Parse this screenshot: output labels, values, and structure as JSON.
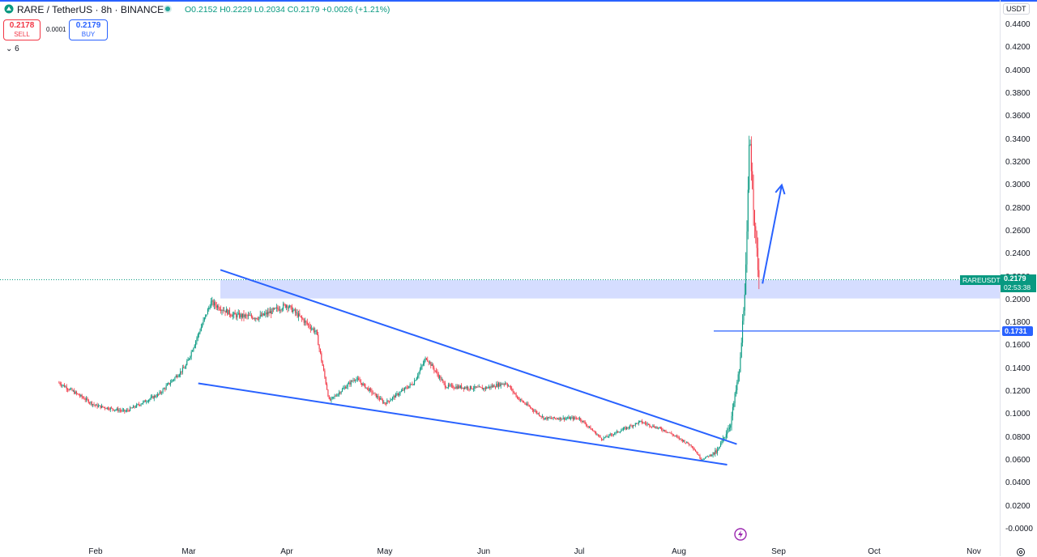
{
  "header": {
    "symbol_title": "RARE / TetherUS · 8h · BINANCE",
    "open": "O0.2152",
    "high": "H0.2229",
    "low": "L0.2034",
    "close": "C0.2179",
    "change": "+0.0026 (+1.21%)",
    "sell_price": "0.2178",
    "sell_label": "SELL",
    "spread": "0.0001",
    "buy_price": "0.2179",
    "buy_label": "BUY",
    "indicator_count": "6"
  },
  "axis": {
    "currency": "USDT"
  },
  "price_tag": {
    "symbol": "RAREUSDT",
    "price": "0.2179",
    "countdown": "02:53:38"
  },
  "level_tag": {
    "price": "0.1731"
  },
  "colors": {
    "up": "#089981",
    "down": "#f23645",
    "drawing": "#2962ff",
    "zone": "#c7d2ff",
    "accent": "#2962ff"
  },
  "icons": {
    "logo": "rare-logo-icon",
    "collapse": "chevron-down-icon",
    "bolt": "lightning-icon",
    "settings": "gear-icon"
  },
  "chart_data": {
    "type": "candlestick",
    "title": "RARE / TetherUS · 8h · BINANCE",
    "y_ticks": [
      "0.4400",
      "0.4200",
      "0.4000",
      "0.3800",
      "0.3600",
      "0.3400",
      "0.3200",
      "0.3000",
      "0.2800",
      "0.2600",
      "0.2400",
      "0.2200",
      "0.2000",
      "0.1800",
      "0.1600",
      "0.1400",
      "0.1200",
      "0.1000",
      "0.0800",
      "0.0600",
      "0.0400",
      "0.0200",
      "-0.0000"
    ],
    "x_ticks": [
      "Feb",
      "Mar",
      "Apr",
      "May",
      "Jun",
      "Jul",
      "Aug",
      "Sep",
      "Oct",
      "Nov"
    ],
    "ylim": [
      -0.003,
      0.447
    ],
    "scale": "linear",
    "grid": false,
    "last_price": 0.2179,
    "price_path": [
      {
        "x": "Jan 21",
        "y": 0.128
      },
      {
        "x": "Feb 01",
        "y": 0.108
      },
      {
        "x": "Feb 10",
        "y": 0.103
      },
      {
        "x": "Feb 20",
        "y": 0.118
      },
      {
        "x": "Feb 28",
        "y": 0.142
      },
      {
        "x": "Mar 08",
        "y": 0.198
      },
      {
        "x": "Mar 15",
        "y": 0.187
      },
      {
        "x": "Mar 23",
        "y": 0.185
      },
      {
        "x": "Apr 01",
        "y": 0.196
      },
      {
        "x": "Apr 10",
        "y": 0.172
      },
      {
        "x": "Apr 14",
        "y": 0.112
      },
      {
        "x": "Apr 22",
        "y": 0.132
      },
      {
        "x": "May 01",
        "y": 0.11
      },
      {
        "x": "May 10",
        "y": 0.128
      },
      {
        "x": "May 14",
        "y": 0.15
      },
      {
        "x": "May 20",
        "y": 0.125
      },
      {
        "x": "Jun 01",
        "y": 0.123
      },
      {
        "x": "Jun 08",
        "y": 0.128
      },
      {
        "x": "Jun 12",
        "y": 0.114
      },
      {
        "x": "Jun 20",
        "y": 0.097
      },
      {
        "x": "Jul 01",
        "y": 0.097
      },
      {
        "x": "Jul 08",
        "y": 0.079
      },
      {
        "x": "Jul 20",
        "y": 0.094
      },
      {
        "x": "Jul 28",
        "y": 0.086
      },
      {
        "x": "Aug 05",
        "y": 0.073
      },
      {
        "x": "Aug 08",
        "y": 0.061
      },
      {
        "x": "Aug 13",
        "y": 0.068
      },
      {
        "x": "Aug 17",
        "y": 0.092
      },
      {
        "x": "Aug 20",
        "y": 0.142
      },
      {
        "x": "Aug 22",
        "y": 0.235
      },
      {
        "x": "Aug 23",
        "y": 0.345
      },
      {
        "x": "Aug 25",
        "y": 0.248
      },
      {
        "x": "Aug 26",
        "y": 0.2179
      }
    ],
    "annotations": {
      "resistance_zone": {
        "from": 0.2015,
        "to": 0.2175
      },
      "upper_trendline": [
        {
          "x": "Mar 11",
          "y": 0.2265
        },
        {
          "x": "Aug 19",
          "y": 0.0745
        }
      ],
      "lower_trendline": [
        {
          "x": "Mar 04",
          "y": 0.1275
        },
        {
          "x": "Aug 16",
          "y": 0.0565
        }
      ],
      "arrow": [
        {
          "x": "Aug 27",
          "y": 0.2145
        },
        {
          "x": "Sep 02",
          "y": 0.3005
        }
      ],
      "horizontal_level": 0.1731
    }
  }
}
